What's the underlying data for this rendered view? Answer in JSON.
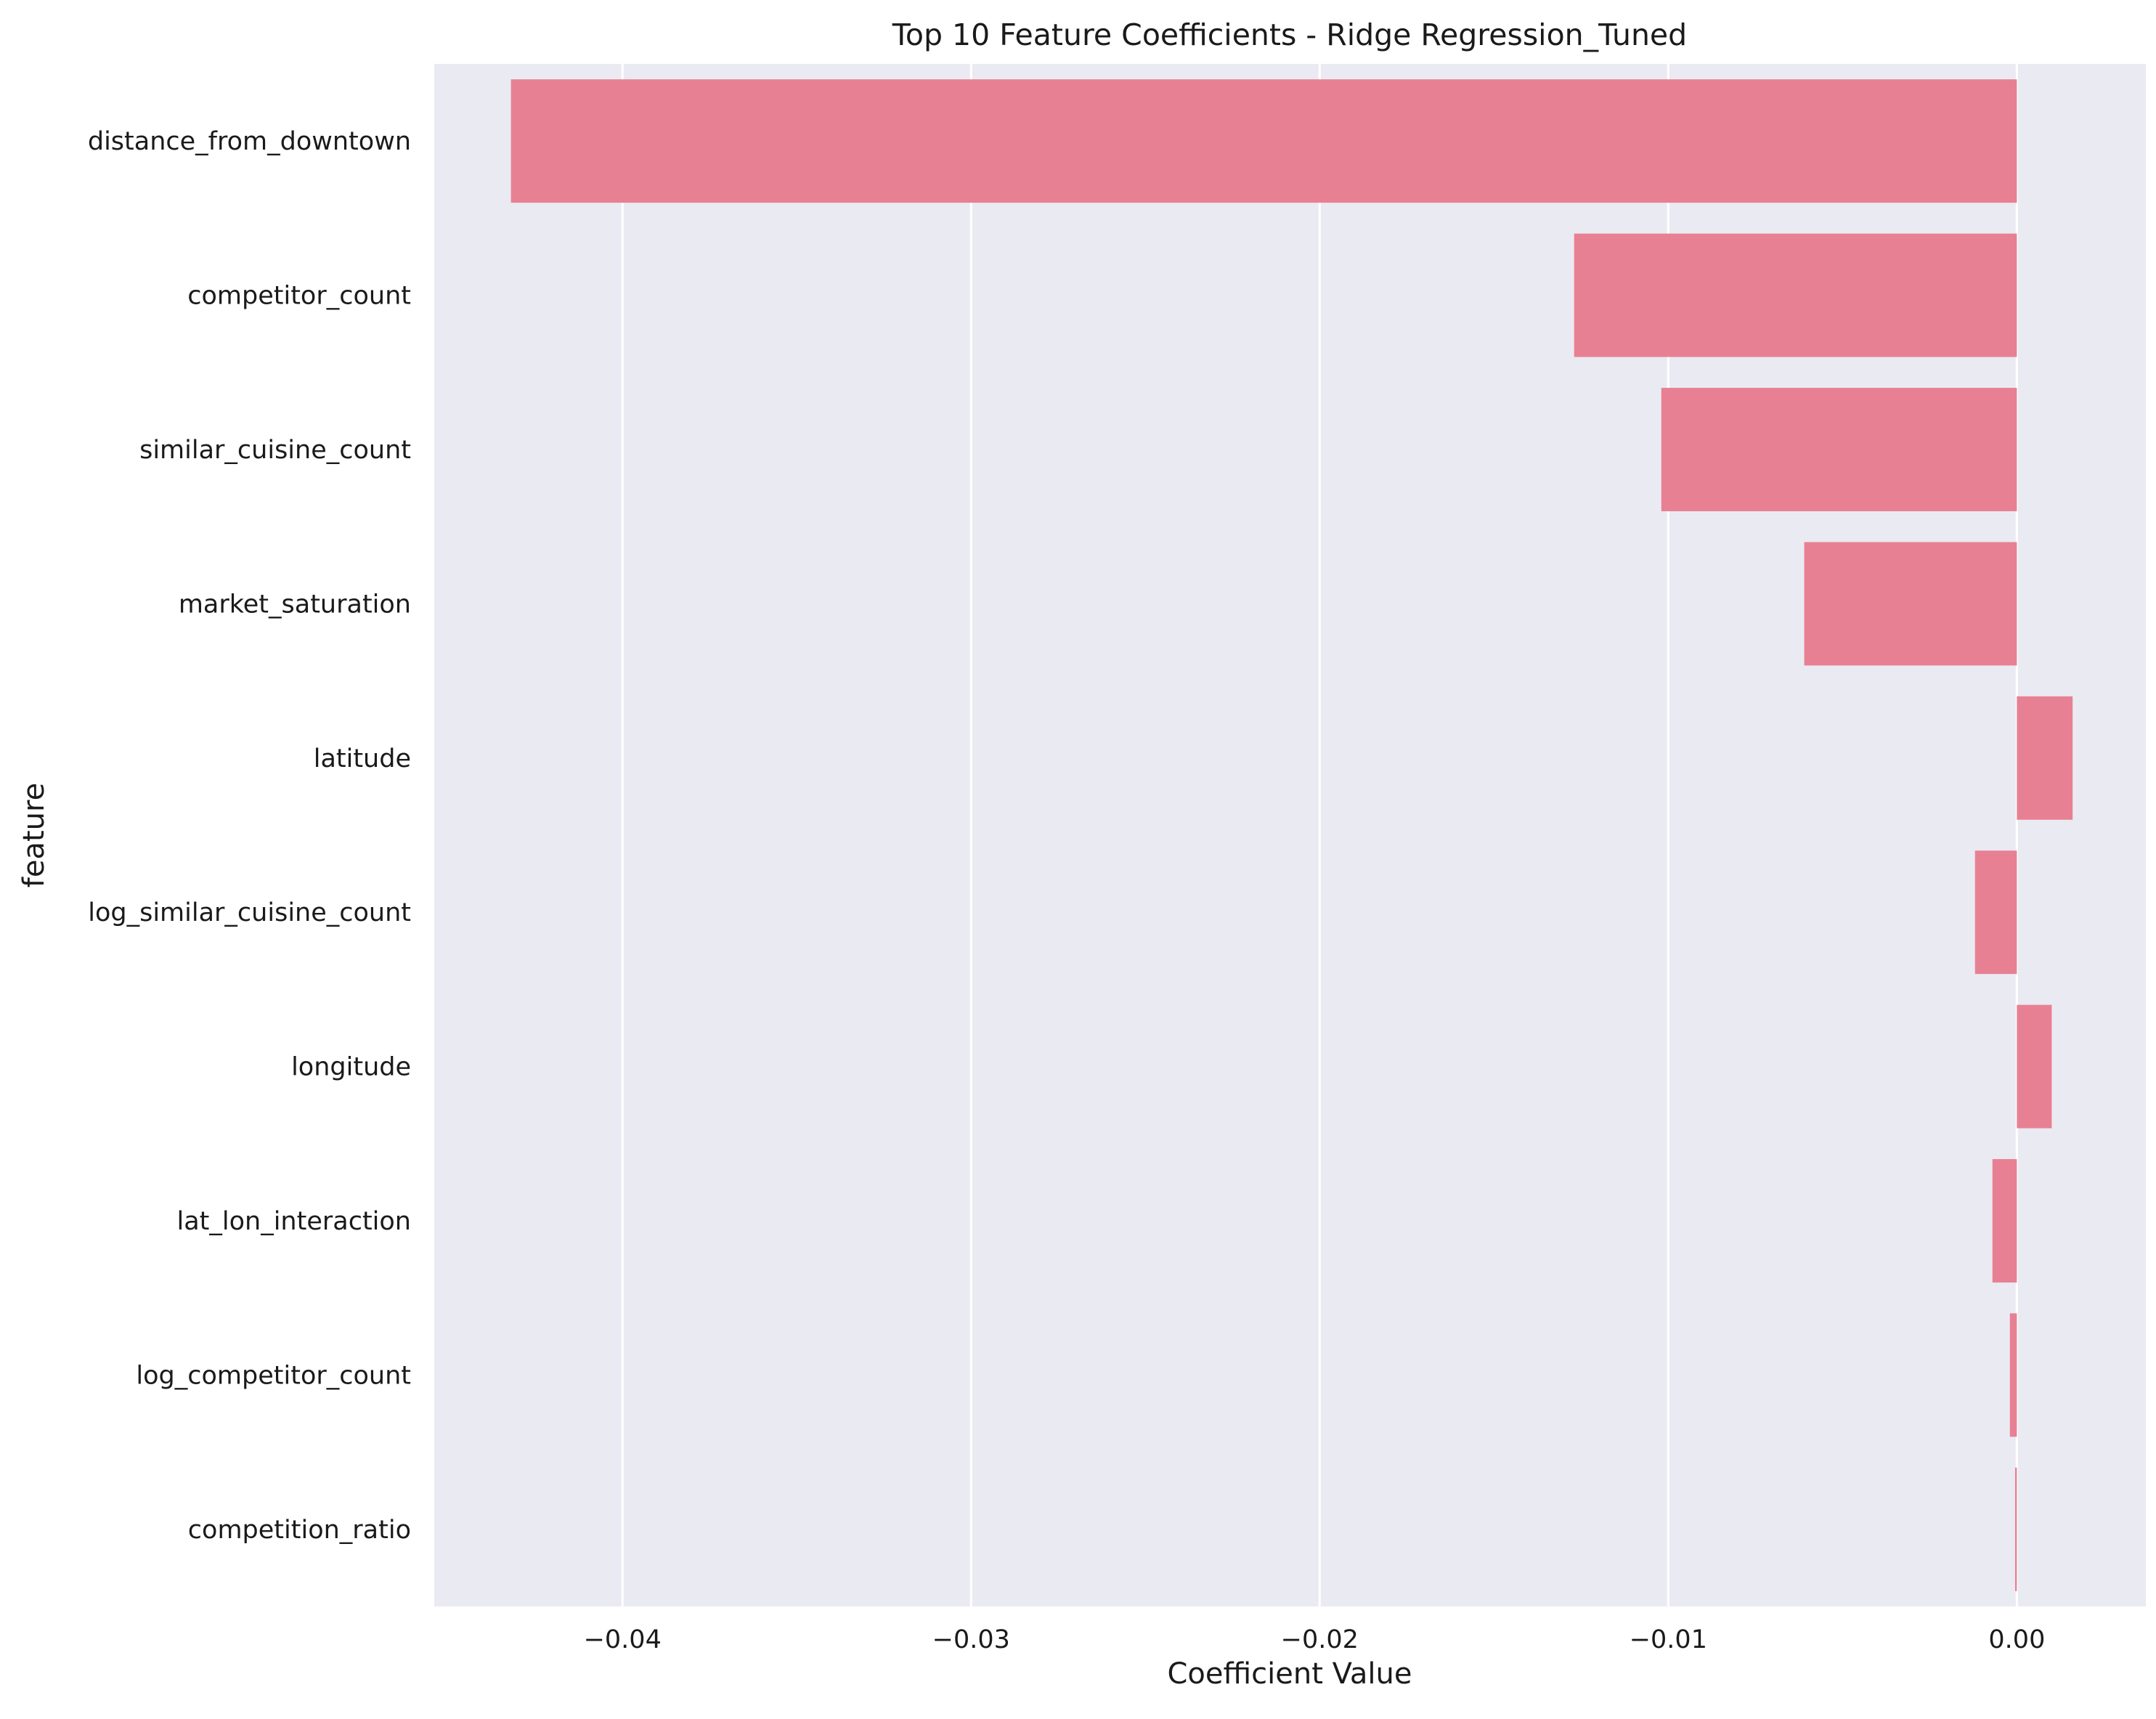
{
  "chart_data": {
    "type": "bar",
    "orientation": "horizontal",
    "title": "Top 10 Feature Coefficients - Ridge Regression_Tuned",
    "xlabel": "Coefficient Value",
    "ylabel": "feature",
    "categories": [
      "distance_from_downtown",
      "competitor_count",
      "similar_cuisine_count",
      "market_saturation",
      "latitude",
      "log_similar_cuisine_count",
      "longitude",
      "lat_lon_interaction",
      "log_competitor_count",
      "competition_ratio"
    ],
    "values": [
      -0.0432,
      -0.0127,
      -0.0102,
      -0.0061,
      0.0016,
      -0.0012,
      0.001,
      -0.0007,
      -0.0002,
      -5e-05
    ],
    "xlim": [
      -0.0454,
      0.0037
    ],
    "xticks": [
      -0.04,
      -0.03,
      -0.02,
      -0.01,
      0.0
    ],
    "xtick_labels": [
      "−0.04",
      "−0.03",
      "−0.02",
      "−0.01",
      "0.00"
    ],
    "grid": true,
    "grid_axis": "x",
    "legend": "none",
    "colors": {
      "bar": "#e88093",
      "plot_background": "#eaeaf2",
      "grid": "#ffffff",
      "text": "#1a1a1a"
    }
  }
}
